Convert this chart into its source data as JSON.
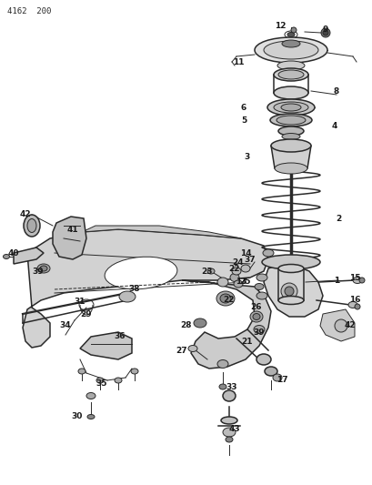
{
  "bg_color": "#ffffff",
  "line_color": "#2a2a2a",
  "label_color": "#1a1a1a",
  "fig_width": 4.1,
  "fig_height": 5.33,
  "dpi": 100,
  "header": "4162  200",
  "xlim": [
    0,
    410
  ],
  "ylim": [
    0,
    533
  ]
}
